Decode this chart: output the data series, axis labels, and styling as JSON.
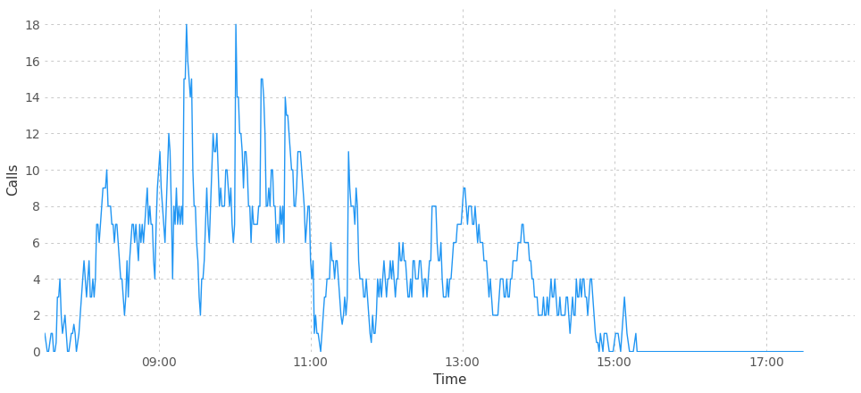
{
  "xlabel": "Time",
  "ylabel": "Calls",
  "line_color": "#2196F3",
  "background_color": "#ffffff",
  "grid_color": "#c8c8c8",
  "ylim": [
    0,
    19
  ],
  "yticks": [
    0,
    2,
    4,
    6,
    8,
    10,
    12,
    14,
    16,
    18
  ],
  "xtick_labels": [
    "09:00",
    "11:00",
    "13:00",
    "15:00",
    "17:00"
  ],
  "xtick_hours": [
    9,
    11,
    13,
    15,
    17
  ],
  "start_hour": 7.5,
  "end_hour": 18.17,
  "figsize": [
    9.64,
    4.4
  ],
  "dpi": 100,
  "call_values": [
    1,
    0.5,
    0,
    0,
    0.5,
    1,
    1,
    0,
    0,
    0.5,
    3,
    3,
    4,
    2,
    1,
    1.5,
    2,
    1,
    0,
    0,
    0.5,
    1,
    1,
    1.5,
    1,
    0,
    0.5,
    1,
    2,
    3,
    4,
    5,
    4,
    3,
    4,
    5,
    3,
    3,
    4,
    3,
    4,
    7,
    7,
    6,
    7,
    8,
    9,
    9,
    9,
    10,
    8,
    8,
    8,
    7,
    7,
    6,
    7,
    7,
    6,
    5,
    4,
    4,
    3,
    2,
    3,
    5,
    3,
    5,
    6,
    7,
    7,
    6,
    7,
    6,
    5,
    7,
    6,
    7,
    6,
    7,
    8,
    9,
    7,
    8,
    7,
    7,
    5,
    4,
    7,
    9,
    10,
    11,
    9,
    8,
    7,
    6,
    8,
    10,
    12,
    11,
    8,
    4,
    8,
    7,
    9,
    7,
    8,
    7,
    8,
    7,
    15,
    15,
    18,
    16,
    15,
    14,
    15,
    10,
    8,
    8,
    6,
    5,
    3,
    2,
    4,
    4,
    5,
    7,
    9,
    7,
    6,
    8,
    10,
    12,
    11,
    11,
    12,
    10,
    8,
    9,
    8,
    8,
    8,
    10,
    10,
    9,
    8,
    9,
    7,
    6,
    7,
    18,
    14,
    14,
    12,
    12,
    11,
    9,
    11,
    11,
    10,
    8,
    8,
    6,
    8,
    7,
    7,
    7,
    7,
    8,
    8,
    15,
    15,
    14,
    12,
    8,
    8,
    9,
    8,
    10,
    10,
    8,
    8,
    6,
    7,
    6,
    8,
    7,
    8,
    6,
    14,
    13,
    13,
    12,
    11,
    10,
    10,
    8,
    8,
    9,
    11,
    11,
    11,
    10,
    9,
    8,
    6,
    7,
    8,
    8,
    5,
    4,
    5,
    1,
    2,
    1,
    1,
    0.5,
    0,
    1,
    2,
    3,
    3,
    4,
    4,
    4,
    6,
    5,
    5,
    4,
    5,
    5,
    4,
    3,
    2,
    1.5,
    2,
    3,
    2,
    3,
    11,
    9,
    8,
    8,
    8,
    7,
    9,
    8,
    5,
    4,
    4,
    4,
    3,
    3,
    4,
    3,
    2,
    1,
    0.5,
    2,
    1,
    1,
    2,
    4,
    3,
    4,
    3,
    4,
    5,
    4,
    3,
    4,
    4,
    5,
    4,
    5,
    4,
    3,
    4,
    4,
    6,
    5,
    5,
    6,
    5,
    5,
    4,
    3,
    3,
    4,
    3,
    5,
    5,
    4,
    4,
    4,
    5,
    5,
    4,
    3,
    4,
    4,
    3,
    4,
    5,
    5,
    8,
    8,
    8,
    8,
    6,
    5,
    5,
    6,
    4,
    3,
    3,
    3,
    4,
    3,
    4,
    4,
    5,
    6,
    6,
    6,
    7,
    7,
    7,
    7,
    8,
    9,
    9,
    8,
    7,
    8,
    8,
    8,
    7,
    7,
    8,
    7,
    6,
    7,
    6,
    6,
    6,
    5,
    5,
    5,
    4,
    3,
    4,
    3,
    2,
    2,
    2,
    2,
    2,
    3,
    4,
    4,
    4,
    3,
    3,
    4,
    3,
    3,
    4,
    4,
    5,
    5,
    5,
    5,
    6,
    6,
    6,
    7,
    7,
    6,
    6,
    6,
    6,
    5,
    5,
    4,
    4,
    3,
    3,
    3,
    2,
    2,
    2,
    2,
    3,
    2,
    2,
    3,
    2,
    3,
    4,
    3,
    3,
    4,
    3,
    2,
    2,
    3,
    2,
    2,
    2,
    2,
    3,
    3,
    2,
    1,
    2,
    3,
    2,
    2,
    4,
    3,
    3,
    4,
    3,
    4,
    4,
    3,
    3,
    2,
    3,
    4,
    4,
    3,
    2,
    1,
    0.5,
    0.5,
    0,
    1,
    0.5,
    0,
    1,
    1,
    1,
    0.5,
    0,
    0,
    0,
    0,
    0.5,
    1,
    1,
    1,
    0.5,
    0,
    1,
    2,
    3,
    2,
    1,
    0.5,
    0,
    0,
    0,
    0,
    0.5,
    1,
    0,
    0,
    0,
    0,
    0,
    0,
    0,
    0,
    0,
    0,
    0,
    0,
    0,
    0,
    0,
    0,
    0,
    0,
    0,
    0,
    0,
    0,
    0,
    0,
    0,
    0,
    0,
    0,
    0,
    0,
    0,
    0,
    0,
    0,
    0,
    0,
    0,
    0,
    0,
    0,
    0,
    0,
    0,
    0,
    0,
    0,
    0,
    0,
    0,
    0,
    0,
    0,
    0,
    0,
    0,
    0,
    0,
    0,
    0,
    0,
    0,
    0,
    0,
    0,
    0,
    0,
    0,
    0,
    0,
    0,
    0,
    0,
    0,
    0,
    0,
    0,
    0,
    0,
    0,
    0,
    0,
    0,
    0,
    0,
    0,
    0,
    0,
    0,
    0,
    0,
    0,
    0,
    0,
    0,
    0,
    0,
    0,
    0,
    0,
    0,
    0,
    0,
    0,
    0,
    0,
    0,
    0,
    0,
    0,
    0,
    0,
    0,
    0,
    0,
    0,
    0,
    0,
    0,
    0,
    0,
    0,
    0,
    0,
    0,
    0,
    0,
    0,
    0,
    0,
    0,
    0,
    0
  ]
}
